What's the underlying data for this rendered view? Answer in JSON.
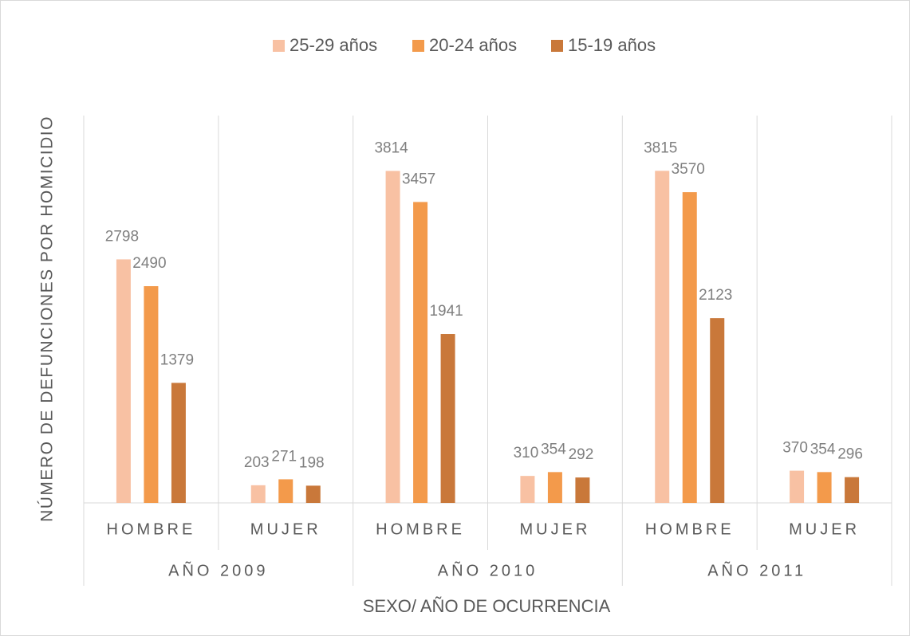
{
  "chart_data": {
    "type": "bar",
    "x_label": "SEXO/ AÑO DE OCURRENCIA",
    "y_label": "NÚMERO DE DEFUNCIONES POR HOMICIDIO",
    "categories": [
      "HOMBRE",
      "MUJER",
      "HOMBRE",
      "MUJER",
      "HOMBRE",
      "MUJER"
    ],
    "groups": [
      "AÑO 2009",
      "AÑO 2010",
      "AÑO 2011"
    ],
    "series": [
      {
        "name": "25-29 años",
        "color": "#f8c1a3",
        "values": [
          2798,
          203,
          3814,
          310,
          3815,
          370
        ]
      },
      {
        "name": "20-24 años",
        "color": "#f39a4b",
        "values": [
          2490,
          271,
          3457,
          354,
          3570,
          354
        ]
      },
      {
        "name": "15-19 años",
        "color": "#c9783a",
        "values": [
          1379,
          198,
          1941,
          292,
          2123,
          296
        ]
      }
    ],
    "ylim": [
      0,
      4450
    ],
    "legend": "top"
  }
}
